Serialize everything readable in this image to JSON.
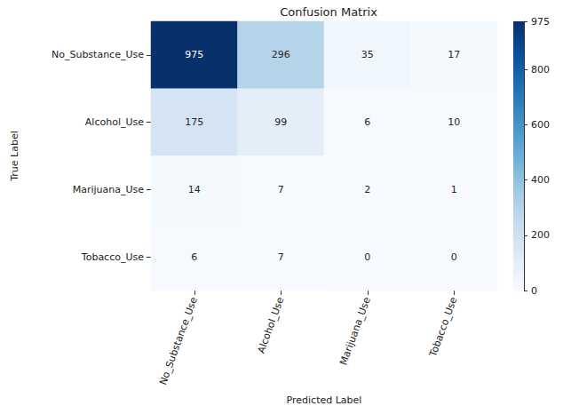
{
  "chart_data": {
    "type": "heatmap",
    "title": "Confusion Matrix",
    "x_label": "Predicted Label",
    "y_label": "True Label",
    "x_categories": [
      "No_Substance_Use",
      "Alcohol_Use",
      "Marijuana_Use",
      "Tobacco_Use"
    ],
    "y_categories": [
      "No_Substance_Use",
      "Alcohol_Use",
      "Marijuana_Use",
      "Tobacco_Use"
    ],
    "cells": [
      [
        975,
        296,
        35,
        17
      ],
      [
        175,
        99,
        6,
        10
      ],
      [
        14,
        7,
        2,
        1
      ],
      [
        6,
        7,
        0,
        0
      ]
    ],
    "colorbar_range": [
      0,
      975
    ],
    "colorbar_ticks": [
      0,
      200,
      400,
      600,
      800
    ],
    "data_labels": true
  }
}
